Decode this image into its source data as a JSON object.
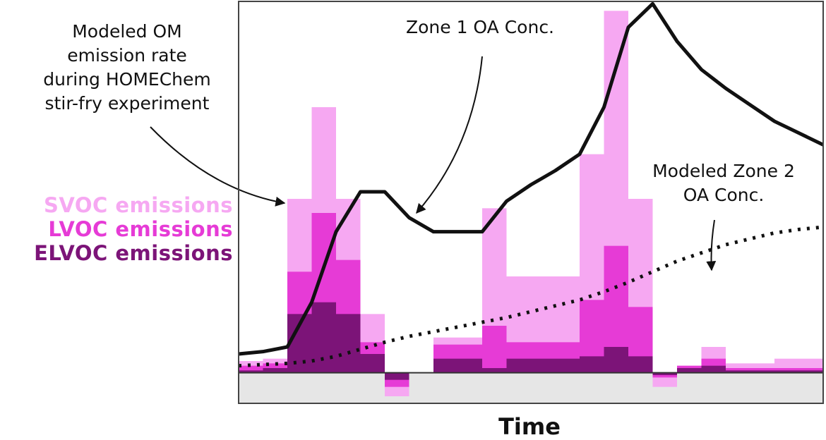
{
  "chart_data": {
    "type": "bar",
    "xlabel": "Time",
    "ylabel": "",
    "title": "",
    "x_range": [
      0,
      24
    ],
    "y_range": [
      -1.3,
      15.8
    ],
    "grid": false,
    "legend": {
      "placement": "left",
      "entries": [
        {
          "name": "SVOC emissions",
          "color": "#f6a8f2"
        },
        {
          "name": "LVOC emissions",
          "color": "#e63bd6"
        },
        {
          "name": "ELVOC emissions",
          "color": "#7c1478"
        }
      ]
    },
    "bins": [
      {
        "x0": 0.0,
        "x1": 1.0,
        "elvoc": 0.1,
        "lvoc": 0.3,
        "svoc": 0.5
      },
      {
        "x0": 1.0,
        "x1": 2.0,
        "elvoc": 0.2,
        "lvoc": 0.4,
        "svoc": 0.6
      },
      {
        "x0": 2.0,
        "x1": 3.0,
        "elvoc": 2.5,
        "lvoc": 4.3,
        "svoc": 7.4
      },
      {
        "x0": 3.0,
        "x1": 4.0,
        "elvoc": 3.0,
        "lvoc": 6.8,
        "svoc": 11.3
      },
      {
        "x0": 4.0,
        "x1": 5.0,
        "elvoc": 2.5,
        "lvoc": 4.8,
        "svoc": 7.4
      },
      {
        "x0": 5.0,
        "x1": 6.0,
        "elvoc": 0.8,
        "lvoc": 1.3,
        "svoc": 2.5
      },
      {
        "x0": 6.0,
        "x1": 7.0,
        "elvoc": -0.3,
        "lvoc": -0.6,
        "svoc": -1.0
      },
      {
        "x0": 7.0,
        "x1": 8.0,
        "elvoc": 0.0,
        "lvoc": 0.0,
        "svoc": 0.0
      },
      {
        "x0": 8.0,
        "x1": 10.0,
        "elvoc": 0.6,
        "lvoc": 1.2,
        "svoc": 1.5
      },
      {
        "x0": 10.0,
        "x1": 11.0,
        "elvoc": 0.2,
        "lvoc": 2.0,
        "svoc": 7.0
      },
      {
        "x0": 11.0,
        "x1": 14.0,
        "elvoc": 0.6,
        "lvoc": 1.3,
        "svoc": 4.1
      },
      {
        "x0": 14.0,
        "x1": 15.0,
        "elvoc": 0.7,
        "lvoc": 3.1,
        "svoc": 9.3
      },
      {
        "x0": 15.0,
        "x1": 16.0,
        "elvoc": 1.1,
        "lvoc": 5.4,
        "svoc": 15.4
      },
      {
        "x0": 16.0,
        "x1": 17.0,
        "elvoc": 0.7,
        "lvoc": 2.8,
        "svoc": 7.4
      },
      {
        "x0": 17.0,
        "x1": 18.0,
        "elvoc": -0.1,
        "lvoc": -0.2,
        "svoc": -0.6
      },
      {
        "x0": 18.0,
        "x1": 19.0,
        "elvoc": 0.2,
        "lvoc": 0.3,
        "svoc": 0.3
      },
      {
        "x0": 19.0,
        "x1": 20.0,
        "elvoc": 0.3,
        "lvoc": 0.6,
        "svoc": 1.1
      },
      {
        "x0": 20.0,
        "x1": 22.0,
        "elvoc": 0.1,
        "lvoc": 0.2,
        "svoc": 0.4
      },
      {
        "x0": 22.0,
        "x1": 24.0,
        "elvoc": 0.1,
        "lvoc": 0.2,
        "svoc": 0.6
      }
    ],
    "series": [
      {
        "name": "Zone 1 OA Conc.",
        "style": "solid",
        "color": "#111111",
        "x": [
          0.0,
          1.0,
          2.0,
          3.0,
          4.0,
          5.0,
          6.0,
          7.0,
          8.0,
          9.0,
          10.0,
          11.0,
          12.0,
          13.0,
          14.0,
          15.0,
          16.0,
          17.0,
          18.0,
          19.0,
          20.0,
          21.0,
          22.0,
          23.0,
          24.0
        ],
        "y": [
          0.8,
          0.9,
          1.1,
          3.0,
          6.0,
          7.7,
          7.7,
          6.6,
          6.0,
          6.0,
          6.0,
          7.3,
          8.0,
          8.6,
          9.3,
          11.3,
          14.7,
          15.7,
          14.1,
          12.9,
          12.1,
          11.4,
          10.7,
          10.2,
          9.7
        ]
      },
      {
        "name": "Modeled Zone 2 OA Conc.",
        "style": "dotted",
        "color": "#111111",
        "x": [
          0.0,
          1.0,
          2.0,
          3.0,
          4.0,
          5.0,
          6.0,
          7.0,
          8.0,
          9.0,
          10.0,
          11.0,
          12.0,
          13.0,
          14.0,
          15.0,
          16.0,
          17.0,
          18.0,
          19.0,
          20.0,
          21.0,
          22.0,
          23.0,
          24.0
        ],
        "y": [
          0.3,
          0.35,
          0.4,
          0.5,
          0.7,
          1.0,
          1.3,
          1.55,
          1.75,
          1.95,
          2.15,
          2.35,
          2.6,
          2.85,
          3.1,
          3.45,
          3.85,
          4.3,
          4.75,
          5.1,
          5.45,
          5.7,
          5.95,
          6.1,
          6.2
        ]
      }
    ],
    "annotations": [
      {
        "id": "om",
        "lines": [
          "Modeled OM",
          "emission rate",
          "during HOMEChem",
          "stir-fry experiment"
        ]
      },
      {
        "id": "zone1",
        "lines": [
          "Zone 1 OA Conc."
        ]
      },
      {
        "id": "zone2",
        "lines": [
          "Modeled Zone 2",
          "OA Conc."
        ]
      }
    ]
  }
}
